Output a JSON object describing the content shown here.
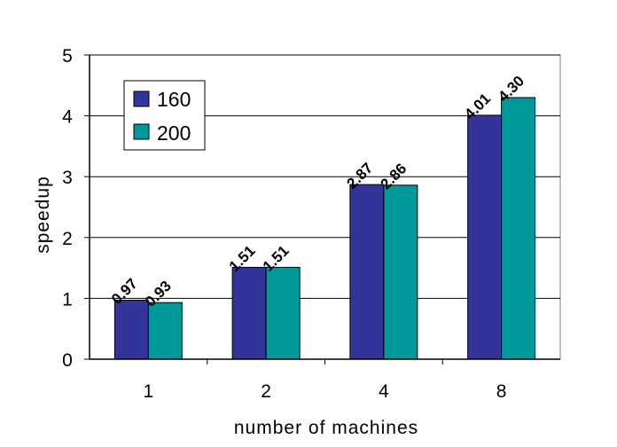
{
  "chart_data": {
    "type": "bar",
    "categories": [
      "1",
      "2",
      "4",
      "8"
    ],
    "series": [
      {
        "name": "160",
        "values": [
          0.97,
          1.51,
          2.87,
          4.01
        ],
        "labels": [
          "0.97",
          "1.51",
          "2.87",
          "4.01"
        ],
        "color": "#333399"
      },
      {
        "name": "200",
        "values": [
          0.93,
          1.51,
          2.86,
          4.3
        ],
        "labels": [
          "0.93",
          "1.51",
          "2.86",
          "4.30"
        ],
        "color": "#009999"
      }
    ],
    "xlabel": "number of machines",
    "ylabel": "speedup",
    "ylim": [
      0,
      5
    ],
    "yticks": [
      "0",
      "1",
      "2",
      "3",
      "4",
      "5"
    ],
    "grid": true,
    "legend_position": "top-left"
  }
}
